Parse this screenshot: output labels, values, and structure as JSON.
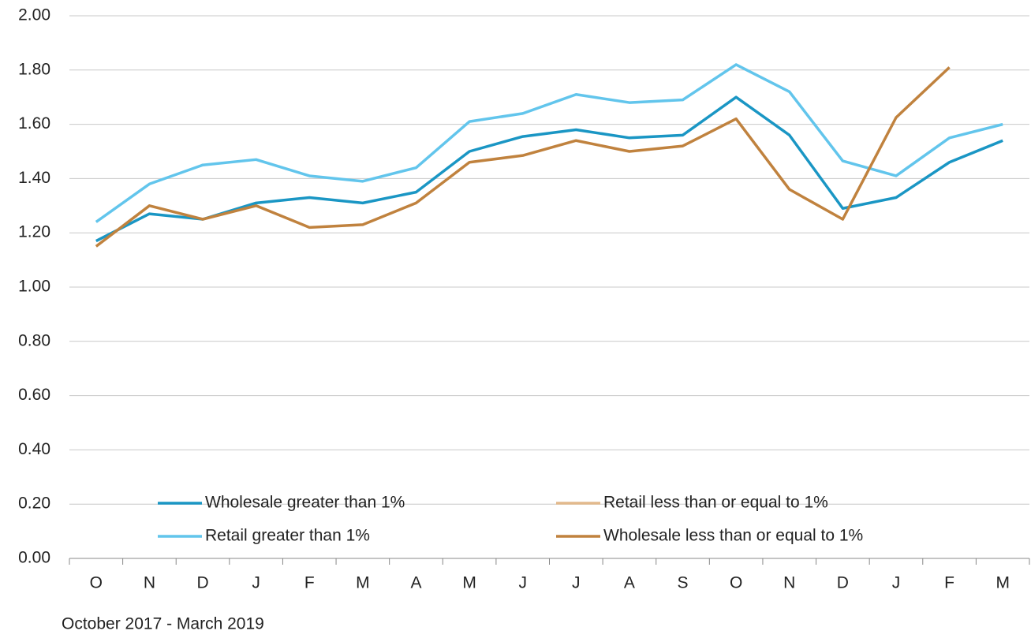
{
  "chart_data": {
    "type": "line",
    "subtitle": "October 2017  -  March 2019",
    "categories": [
      "O",
      "N",
      "D",
      "J",
      "F",
      "M",
      "A",
      "M",
      "J",
      "J",
      "A",
      "S",
      "O",
      "N",
      "D",
      "J",
      "F",
      "M"
    ],
    "series": [
      {
        "name": "Wholesale greater than 1%",
        "color": "#1a96c4",
        "values": [
          1.17,
          1.27,
          1.25,
          1.31,
          1.33,
          1.31,
          1.35,
          1.5,
          1.555,
          1.58,
          1.55,
          1.56,
          1.7,
          1.56,
          1.29,
          1.33,
          1.46,
          1.54
        ]
      },
      {
        "name": "Retail less than or equal to 1%",
        "color": "#e2b98c",
        "values": [
          null,
          null,
          null,
          null,
          null,
          null,
          null,
          null,
          null,
          null,
          null,
          null,
          null,
          null,
          null,
          null,
          null,
          null
        ]
      },
      {
        "name": "Retail greater than 1%",
        "color": "#62c5ec",
        "values": [
          1.24,
          1.38,
          1.45,
          1.47,
          1.41,
          1.39,
          1.44,
          1.61,
          1.64,
          1.71,
          1.68,
          1.69,
          1.82,
          1.72,
          1.465,
          1.41,
          1.55,
          1.6
        ]
      },
      {
        "name": "Wholesale less than or equal to 1%",
        "color": "#c0823e",
        "values": [
          1.15,
          1.3,
          1.25,
          1.3,
          1.22,
          1.23,
          1.31,
          1.46,
          1.485,
          1.54,
          1.5,
          1.52,
          1.62,
          1.36,
          1.25,
          1.625,
          1.81,
          null
        ]
      }
    ],
    "ylim": [
      0,
      2
    ],
    "yticks": [
      {
        "value": 0,
        "label": "0.00"
      },
      {
        "value": 0.2,
        "label": "0.20"
      },
      {
        "value": 0.4,
        "label": "0.40"
      },
      {
        "value": 0.6,
        "label": "0.60"
      },
      {
        "value": 0.8,
        "label": "0.80"
      },
      {
        "value": 1,
        "label": "1.00"
      },
      {
        "value": 1.2,
        "label": "1.20"
      },
      {
        "value": 1.4,
        "label": "1.40"
      },
      {
        "value": 1.6,
        "label": "1.60"
      },
      {
        "value": 1.8,
        "label": "1.80"
      },
      {
        "value": 2,
        "label": "2.00"
      }
    ],
    "grid": true
  }
}
